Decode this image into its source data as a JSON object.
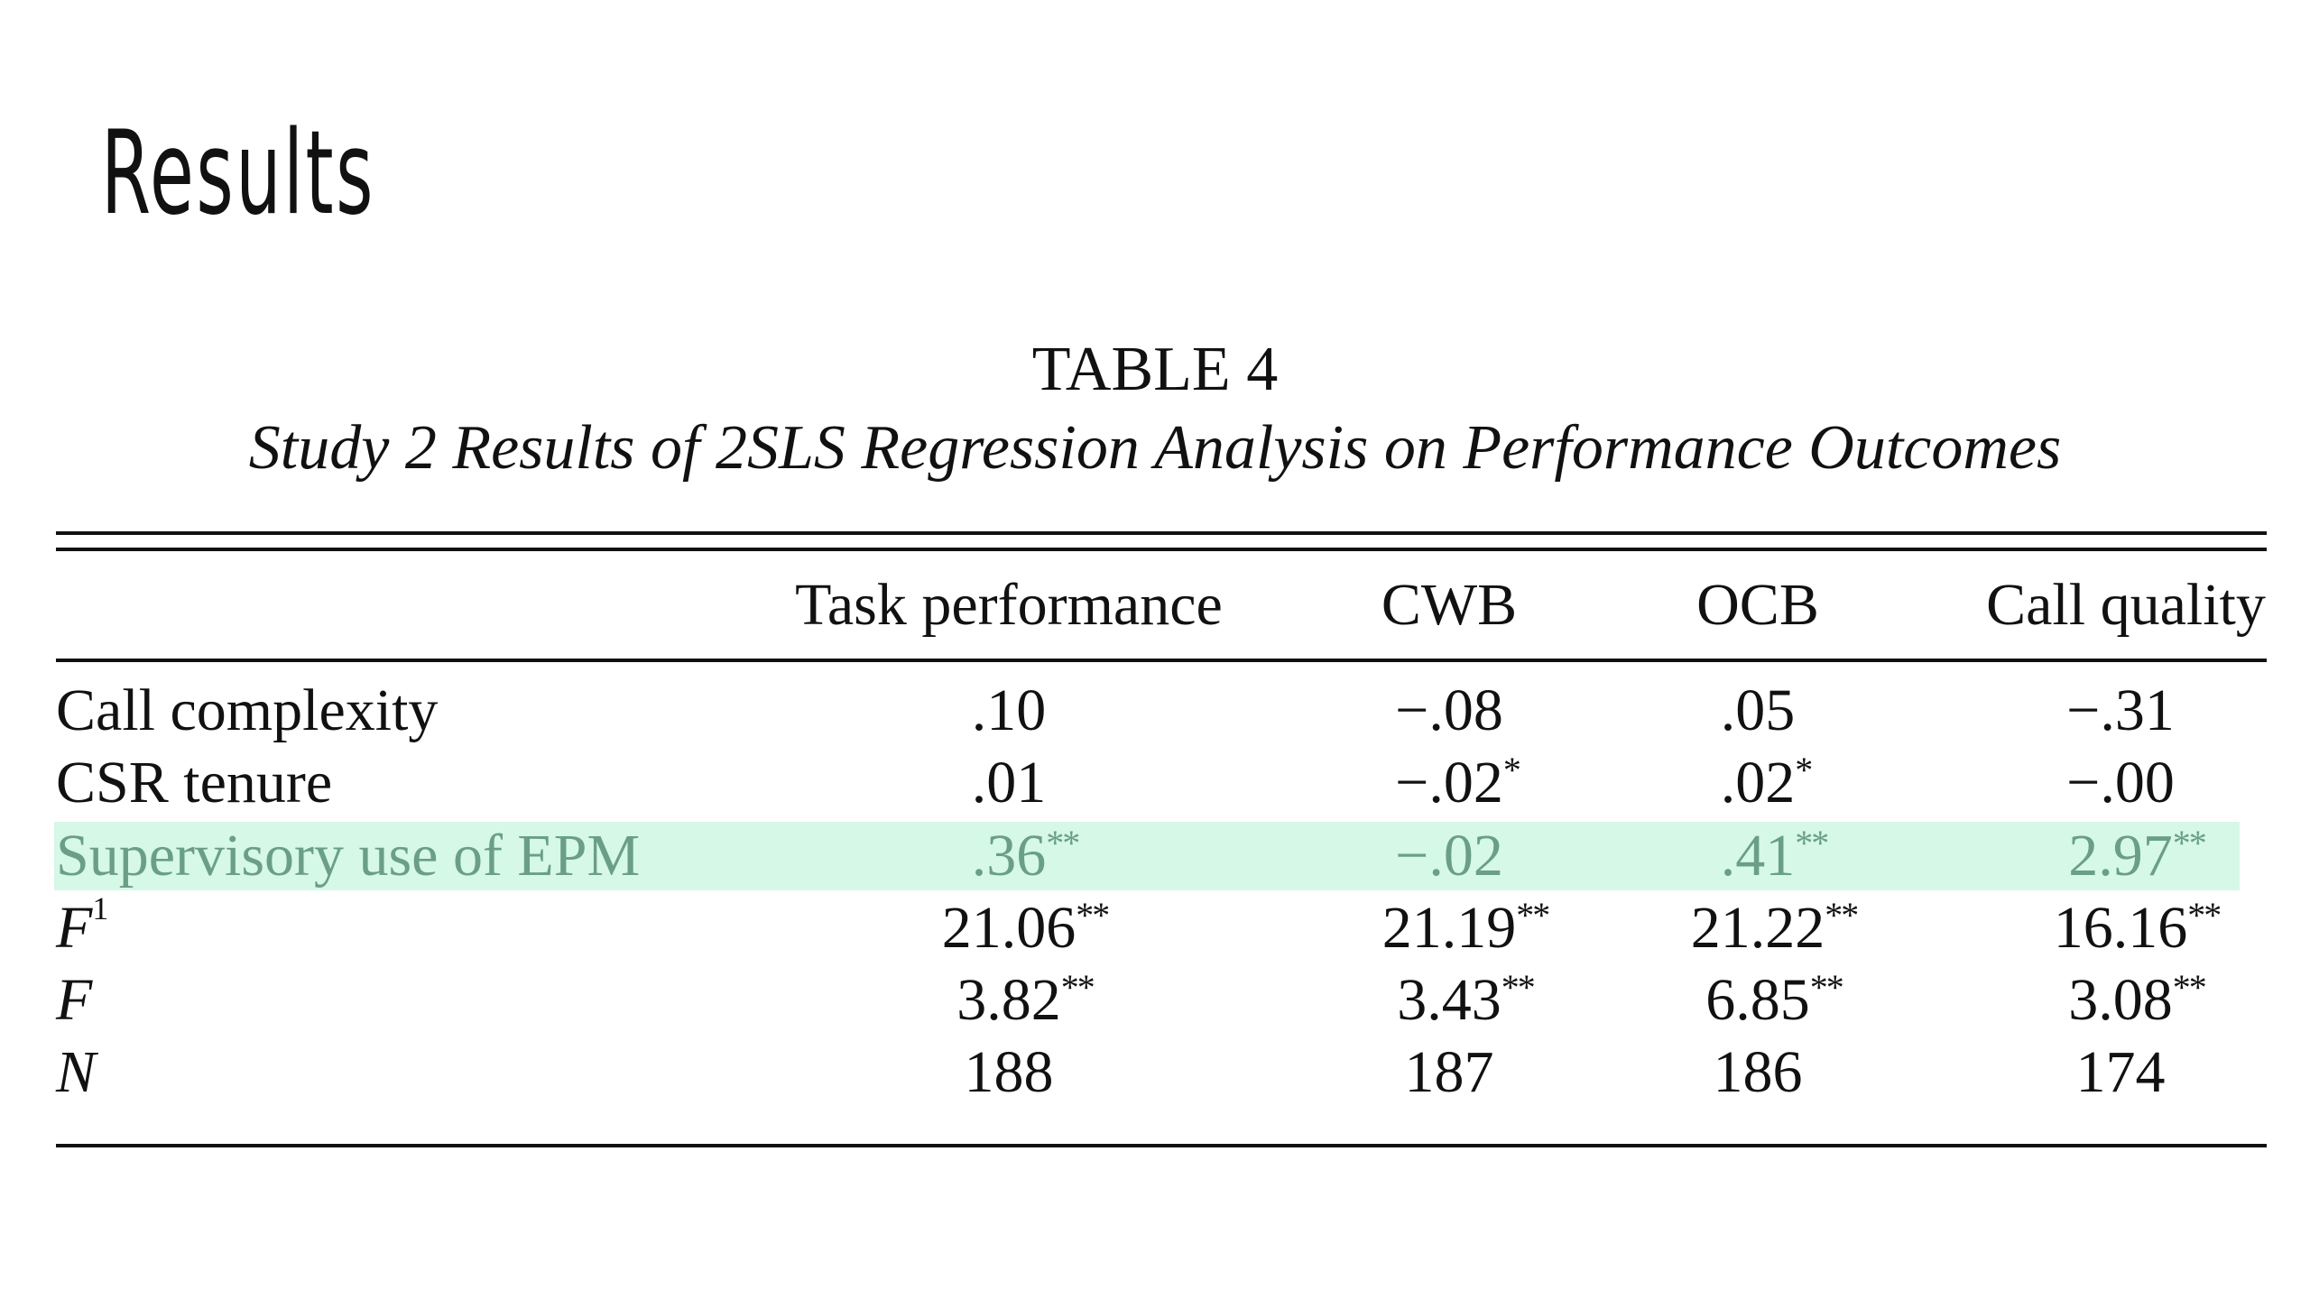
{
  "slide": {
    "title": "Results"
  },
  "table": {
    "number": "TABLE 4",
    "subtitle": "Study 2 Results of 2SLS Regression Analysis on Performance Outcomes",
    "columns": [
      "Task performance",
      "CWB",
      "OCB",
      "Call quality"
    ],
    "highlight_color": "#d6f8e6",
    "highlight_text_color": "#6a9f85",
    "rows": [
      {
        "label": "Call complexity",
        "values": [
          ".10",
          "−.08",
          ".05",
          "−.31"
        ],
        "stars": [
          "",
          "",
          "",
          ""
        ]
      },
      {
        "label": "CSR tenure",
        "values": [
          ".01",
          "−.02",
          ".02",
          "−.00"
        ],
        "stars": [
          "",
          "*",
          "*",
          ""
        ]
      },
      {
        "label": "Supervisory use of EPM",
        "values": [
          ".36",
          "−.02",
          ".41",
          "2.97"
        ],
        "stars": [
          "**",
          "",
          "**",
          "**"
        ],
        "highlighted": true
      },
      {
        "label": "F",
        "label_sup": "1",
        "values": [
          "21.06",
          "21.19",
          "21.22",
          "16.16"
        ],
        "stars": [
          "**",
          "**",
          "**",
          "**"
        ]
      },
      {
        "label": "F",
        "values": [
          "3.82",
          "3.43",
          "6.85",
          "3.08"
        ],
        "stars": [
          "**",
          "**",
          "**",
          "**"
        ]
      },
      {
        "label": "N",
        "values": [
          "188",
          "187",
          "186",
          "174"
        ],
        "stars": [
          "",
          "",
          "",
          ""
        ]
      }
    ]
  }
}
